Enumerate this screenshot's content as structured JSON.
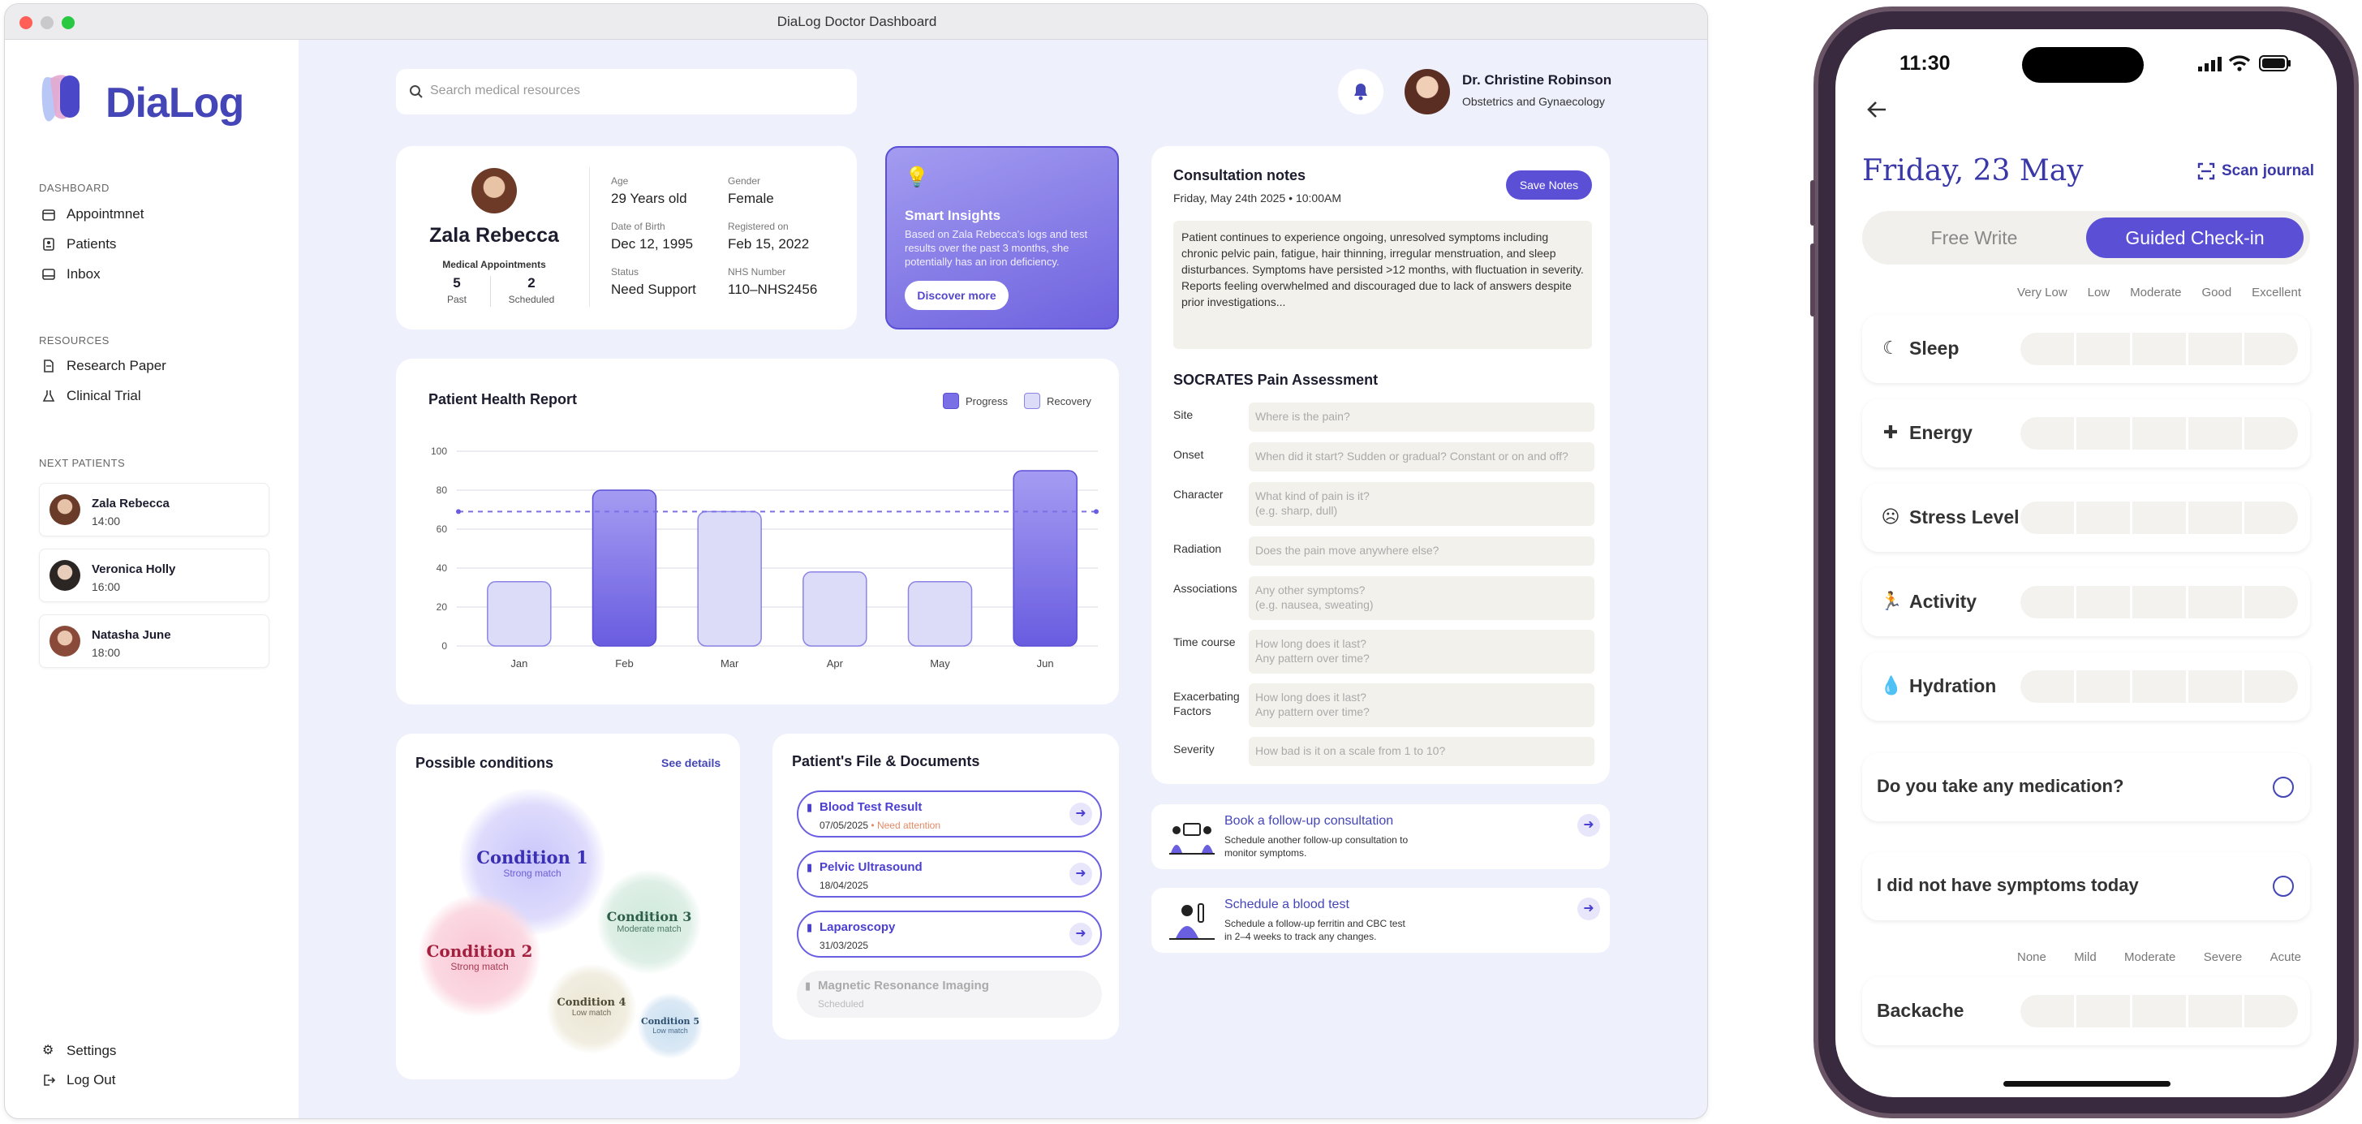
{
  "window": {
    "title": "DiaLog Doctor Dashboard"
  },
  "brand": {
    "name": "DiaLog"
  },
  "sidebar": {
    "dashboard_label": "DASHBOARD",
    "nav": [
      {
        "label": "Appointmnet",
        "icon": "calendar-icon"
      },
      {
        "label": "Patients",
        "icon": "patient-file-icon"
      },
      {
        "label": "Inbox",
        "icon": "inbox-icon"
      }
    ],
    "resources_label": "RESOURCES",
    "resources": [
      {
        "label": "Research Paper",
        "icon": "paper-icon"
      },
      {
        "label": "Clinical Trial",
        "icon": "flask-icon"
      }
    ],
    "next_label": "NEXT PATIENTS",
    "next_patients": [
      {
        "name": "Zala Rebecca",
        "time": "14:00"
      },
      {
        "name": "Veronica Holly",
        "time": "16:00"
      },
      {
        "name": "Natasha June",
        "time": "18:00"
      }
    ],
    "settings": "Settings",
    "logout": "Log Out"
  },
  "header": {
    "search_placeholder": "Search medical resources",
    "doctor_name": "Dr. Christine Robinson",
    "doctor_role": "Obstetrics and Gynaecology"
  },
  "patient": {
    "name": "Zala Rebecca",
    "appointments_label": "Medical Appointments",
    "past": "5",
    "past_label": "Past",
    "scheduled": "2",
    "scheduled_label": "Scheduled",
    "age_label": "Age",
    "age": "29 Years old",
    "gender_label": "Gender",
    "gender": "Female",
    "dob_label": "Date of Birth",
    "dob": "Dec 12, 1995",
    "registered_label": "Registered on",
    "registered": "Feb 15, 2022",
    "status_label": "Status",
    "status": "Need Support",
    "nhs_label": "NHS Number",
    "nhs": "110–NHS2456"
  },
  "insights": {
    "title": "Smart Insights",
    "body": "Based on Zala Rebecca's logs and test results over the past 3 months, she potentially has an iron deficiency.",
    "button": "Discover more"
  },
  "chart_data": {
    "type": "bar",
    "title": "Patient Health Report",
    "categories": [
      "Jan",
      "Feb",
      "Mar",
      "Apr",
      "May",
      "Jun"
    ],
    "series": [
      {
        "name": "Progress",
        "values": [
          null,
          80,
          null,
          null,
          null,
          90
        ]
      },
      {
        "name": "Recovery",
        "values": [
          33,
          null,
          69,
          38,
          33,
          null
        ]
      }
    ],
    "reference_line": 69,
    "ylim": [
      0,
      100
    ],
    "yticks": [
      0,
      20,
      40,
      60,
      80,
      100
    ],
    "legend": "top-right",
    "colors": {
      "Progress": "#7b6fe6",
      "Recovery": "#dcdcf9"
    }
  },
  "conditions": {
    "title": "Possible conditions",
    "see_details": "See details",
    "items": [
      {
        "name": "Condition 1",
        "match": "Strong match"
      },
      {
        "name": "Condition 2",
        "match": "Strong match"
      },
      {
        "name": "Condition 3",
        "match": "Moderate match"
      },
      {
        "name": "Condition 4",
        "match": "Low match"
      },
      {
        "name": "Condition 5",
        "match": "Low match"
      }
    ]
  },
  "files": {
    "title": "Patient's File & Documents",
    "items": [
      {
        "name": "Blood Test Result",
        "date": "07/05/2025",
        "note": "Need attention"
      },
      {
        "name": "Pelvic Ultrasound",
        "date": "18/04/2025"
      },
      {
        "name": "Laparoscopy",
        "date": "31/03/2025"
      },
      {
        "name": "Magnetic Resonance Imaging",
        "date": "Scheduled"
      }
    ]
  },
  "notes": {
    "title": "Consultation notes",
    "date": "Friday, May 24th 2025",
    "time": "10:00AM",
    "save": "Save Notes",
    "body": "Patient continues to experience ongoing, unresolved symptoms including chronic pelvic pain, fatigue, hair thinning, irregular menstruation, and sleep disturbances. Symptoms have persisted >12 months, with fluctuation in severity. Reports feeling overwhelmed and discouraged due to lack of answers despite prior investigations...",
    "socrates_title": "SOCRATES Pain Assessment",
    "socrates": [
      {
        "label": "Site",
        "placeholder": "Where is the pain?"
      },
      {
        "label": "Onset",
        "placeholder": "When did it start? Sudden or gradual? Constant or on and off?"
      },
      {
        "label": "Character",
        "placeholder": "What kind of pain is it?\n(e.g. sharp, dull)"
      },
      {
        "label": "Radiation",
        "placeholder": "Does the pain move anywhere else?"
      },
      {
        "label": "Associations",
        "placeholder": "Any other symptoms?\n(e.g. nausea, sweating)"
      },
      {
        "label": "Time course",
        "placeholder": "How long does it last?\nAny pattern over time?"
      },
      {
        "label": "Exacerbating Factors",
        "placeholder": "How long does it last?\nAny pattern over time?"
      },
      {
        "label": "Severity",
        "placeholder": "How bad is it on a scale from 1 to 10?"
      }
    ]
  },
  "actions": [
    {
      "title": "Book a follow-up consultation",
      "desc": "Schedule another follow-up consultation to monitor symptoms."
    },
    {
      "title": "Schedule a blood test",
      "desc": "Schedule a follow-up ferritin and CBC test in 2–4 weeks to track any changes."
    }
  ],
  "phone": {
    "time": "11:30",
    "date": "Friday, 23 May",
    "scan": "Scan journal",
    "tab_free": "Free Write",
    "tab_guided": "Guided Check-in",
    "scale_labels": [
      "Very Low",
      "Low",
      "Moderate",
      "Good",
      "Excellent"
    ],
    "metrics": [
      {
        "label": "Sleep",
        "icon": "moon-icon"
      },
      {
        "label": "Energy",
        "icon": "plus-icon"
      },
      {
        "label": "Stress Level",
        "icon": "face-icon"
      },
      {
        "label": "Activity",
        "icon": "running-icon"
      },
      {
        "label": "Hydration",
        "icon": "drop-icon"
      }
    ],
    "q1": "Do you take any medication?",
    "q2": "I did not have symptoms today",
    "severity_labels": [
      "None",
      "Mild",
      "Moderate",
      "Severe",
      "Acute"
    ],
    "symptom": "Backache"
  }
}
